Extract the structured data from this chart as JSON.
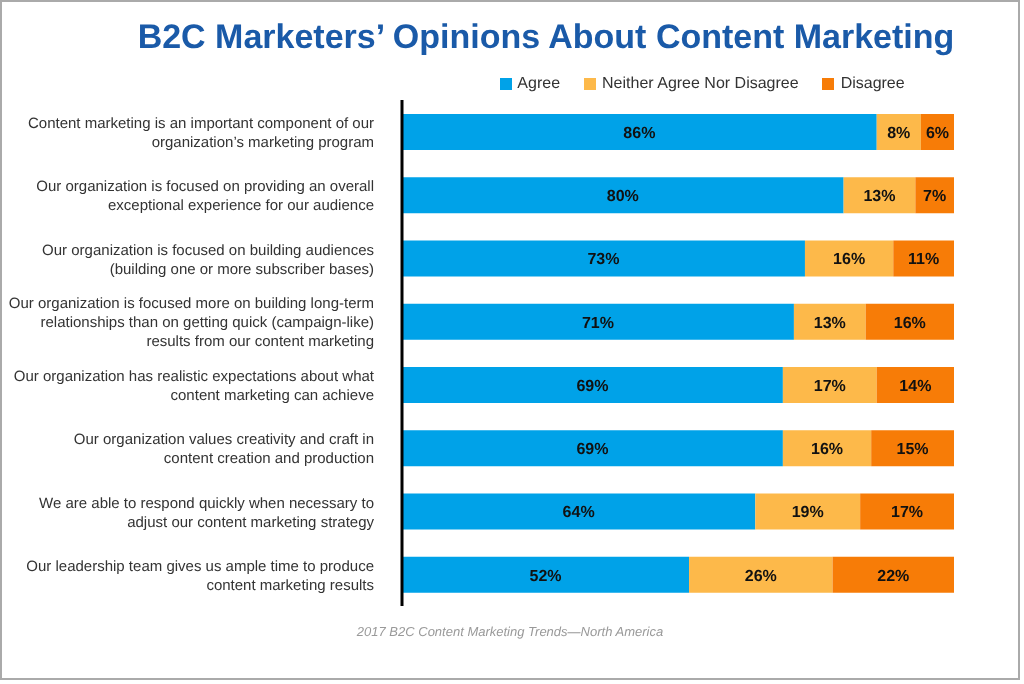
{
  "chart_data": {
    "type": "bar",
    "orientation": "horizontal",
    "stacked": true,
    "title": "B2C Marketers’ Opinions About Content Marketing",
    "categories": [
      "Content marketing is an important component of our organization’s marketing program",
      "Our organization is focused on providing an overall exceptional experience for our audience",
      "Our organization is focused on building audiences (building one or more subscriber bases)",
      "Our organization is focused more on building long-term relationships than on getting quick (campaign-like) results from our content marketing",
      "Our organization has realistic expectations about what content marketing can achieve",
      "Our organization values creativity and craft in content creation and production",
      "We are able to respond quickly when necessary to adjust our content marketing strategy",
      "Our leadership team gives us ample time to produce content marketing results"
    ],
    "series": [
      {
        "name": "Agree",
        "color": "#00a2e8",
        "values": [
          86,
          80,
          73,
          71,
          69,
          69,
          64,
          52
        ],
        "value_labels": [
          "86%",
          "80%",
          "73%",
          "71%",
          "69%",
          "69%",
          "64%",
          "52%"
        ]
      },
      {
        "name": "Neither Agree Nor Disagree",
        "color": "#fdb94a",
        "values": [
          8,
          13,
          16,
          13,
          17,
          16,
          19,
          26
        ],
        "value_labels": [
          "8%",
          "13%",
          "16%",
          "13%",
          "17%",
          "16%",
          "19%",
          "26%"
        ]
      },
      {
        "name": "Disagree",
        "color": "#f77c07",
        "values": [
          6,
          7,
          11,
          16,
          14,
          15,
          17,
          22
        ],
        "value_labels": [
          "6%",
          "7%",
          "11%",
          "16%",
          "14%",
          "15%",
          "17%",
          "22%"
        ]
      }
    ],
    "legend": "top",
    "tick_labels": "y",
    "grid": false,
    "annotations": [
      "2017 B2C Content Marketing Trends—North America"
    ]
  }
}
